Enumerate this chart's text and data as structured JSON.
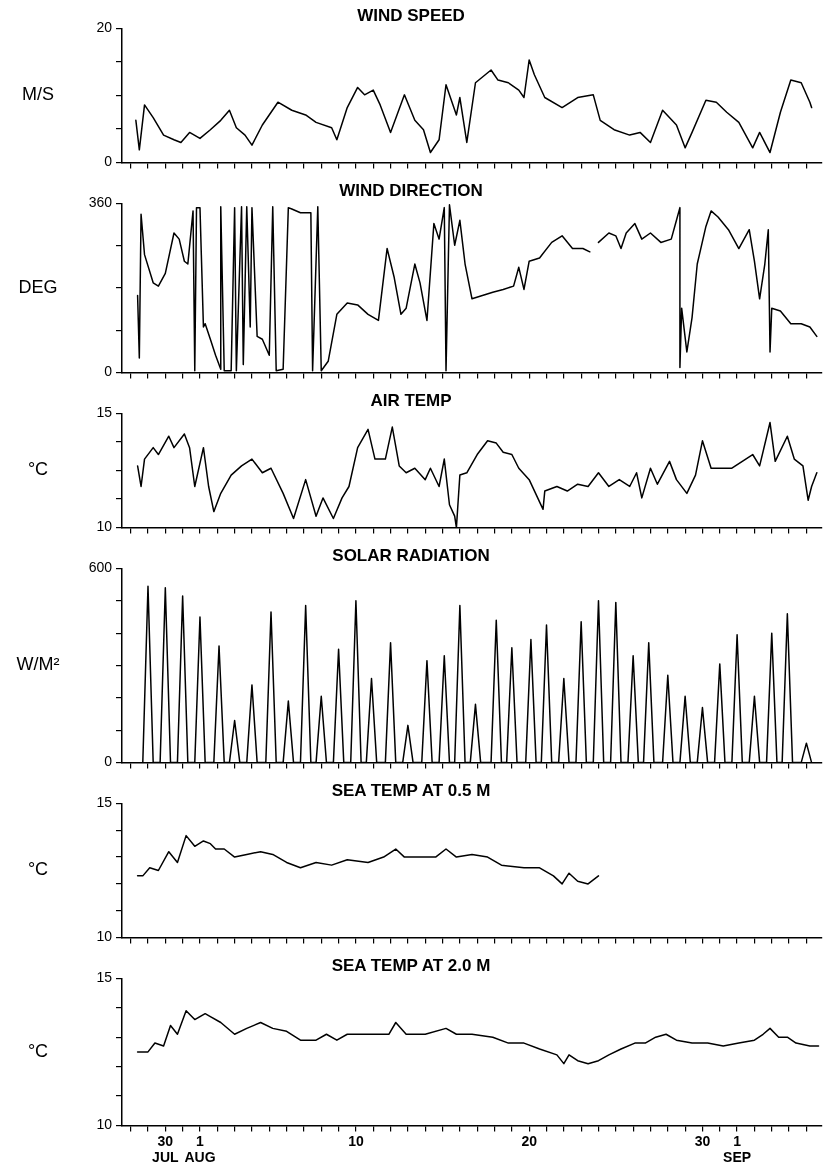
{
  "chart_data": [
    {
      "type": "line",
      "title": "WIND SPEED",
      "ylabel": "M/S",
      "color": "#000000",
      "marker": "none",
      "tick_labels": "y",
      "xlim": [
        -3.5,
        36.9
      ],
      "ylim": [
        0,
        20
      ],
      "yticks": [
        0,
        {
          "value": 5,
          "label": null
        },
        {
          "value": 10,
          "label": null
        },
        {
          "value": 15,
          "label": null
        },
        20
      ],
      "xticks": [
        {
          "value": -3,
          "label": null
        },
        {
          "value": -2,
          "label": null
        },
        {
          "value": -1,
          "label": null
        },
        {
          "value": 0,
          "label": null
        },
        {
          "value": 1,
          "label": null
        },
        {
          "value": 2,
          "label": null
        },
        {
          "value": 3,
          "label": null
        },
        {
          "value": 4,
          "label": null
        },
        {
          "value": 5,
          "label": null
        },
        {
          "value": 6,
          "label": null
        },
        {
          "value": 7,
          "label": null
        },
        {
          "value": 8,
          "label": null
        },
        {
          "value": 9,
          "label": null
        },
        {
          "value": 10,
          "label": null
        },
        {
          "value": 11,
          "label": null
        },
        {
          "value": 12,
          "label": null
        },
        {
          "value": 13,
          "label": null
        },
        {
          "value": 14,
          "label": null
        },
        {
          "value": 15,
          "label": null
        },
        {
          "value": 16,
          "label": null
        },
        {
          "value": 17,
          "label": null
        },
        {
          "value": 18,
          "label": null
        },
        {
          "value": 19,
          "label": null
        },
        {
          "value": 20,
          "label": null
        },
        {
          "value": 21,
          "label": null
        },
        {
          "value": 22,
          "label": null
        },
        {
          "value": 23,
          "label": null
        },
        {
          "value": 24,
          "label": null
        },
        {
          "value": 25,
          "label": null
        },
        {
          "value": 26,
          "label": null
        },
        {
          "value": 27,
          "label": null
        },
        {
          "value": 28,
          "label": null
        },
        {
          "value": 29,
          "label": null
        },
        {
          "value": 30,
          "label": null
        },
        {
          "value": 31,
          "label": null
        },
        {
          "value": 32,
          "label": null
        },
        {
          "value": 33,
          "label": null
        },
        {
          "value": 34,
          "label": null
        },
        {
          "value": 35,
          "label": null
        },
        {
          "value": 36,
          "label": null
        }
      ],
      "x": [
        -2.7,
        -2.5,
        -2.2,
        -1.7,
        -1.1,
        -0.5,
        -0.1,
        0.4,
        1.0,
        1.6,
        2.2,
        2.7,
        3.1,
        3.6,
        4.0,
        4.6,
        5.5,
        6.3,
        7.1,
        7.7,
        8.6,
        8.9,
        9.5,
        10.1,
        10.5,
        11.0,
        11.4,
        12.0,
        12.8,
        13.4,
        13.9,
        14.3,
        14.8,
        15.2,
        15.8,
        16.0,
        16.4,
        16.9,
        17.8,
        18.2,
        18.8,
        19.4,
        19.7,
        20.0,
        20.3,
        20.9,
        21.9,
        22.8,
        23.7,
        24.1,
        24.9,
        25.8,
        26.4,
        27.0,
        27.7,
        28.5,
        29.0,
        29.4,
        30.2,
        30.8,
        31.4,
        32.1,
        32.9,
        33.3,
        33.9,
        34.5,
        35.1,
        35.7,
        36.2,
        36.3
      ],
      "values": [
        6.3,
        1.9,
        8.6,
        6.7,
        4.1,
        3.4,
        3.0,
        4.5,
        3.6,
        4.9,
        6.3,
        7.8,
        5.2,
        4.1,
        2.6,
        5.6,
        9.0,
        7.8,
        7.1,
        6.0,
        5.2,
        3.4,
        8.2,
        11.2,
        10.1,
        10.8,
        8.6,
        4.5,
        10.1,
        6.3,
        4.9,
        1.5,
        3.4,
        11.6,
        7.1,
        9.7,
        3.0,
        11.9,
        13.8,
        12.3,
        11.9,
        10.8,
        9.7,
        15.3,
        13.1,
        9.7,
        8.2,
        9.7,
        10.1,
        6.3,
        4.9,
        4.1,
        4.5,
        3.0,
        7.8,
        5.6,
        2.2,
        4.5,
        9.3,
        9.0,
        7.5,
        6.0,
        2.2,
        4.5,
        1.5,
        7.5,
        12.3,
        11.9,
        9.0,
        8.2
      ]
    },
    {
      "type": "line",
      "title": "WIND DIRECTION",
      "ylabel": "DEG",
      "color": "#000000",
      "marker": "none",
      "tick_labels": "y",
      "xlim": [
        -3.5,
        36.9
      ],
      "ylim": [
        0,
        360
      ],
      "yticks": [
        0,
        {
          "value": 90,
          "label": null
        },
        {
          "value": 180,
          "label": null
        },
        {
          "value": 270,
          "label": null
        },
        360
      ],
      "xticks": [
        {
          "value": -3,
          "label": null
        },
        {
          "value": -2,
          "label": null
        },
        {
          "value": -1,
          "label": null
        },
        {
          "value": 0,
          "label": null
        },
        {
          "value": 1,
          "label": null
        },
        {
          "value": 2,
          "label": null
        },
        {
          "value": 3,
          "label": null
        },
        {
          "value": 4,
          "label": null
        },
        {
          "value": 5,
          "label": null
        },
        {
          "value": 6,
          "label": null
        },
        {
          "value": 7,
          "label": null
        },
        {
          "value": 8,
          "label": null
        },
        {
          "value": 9,
          "label": null
        },
        {
          "value": 10,
          "label": null
        },
        {
          "value": 11,
          "label": null
        },
        {
          "value": 12,
          "label": null
        },
        {
          "value": 13,
          "label": null
        },
        {
          "value": 14,
          "label": null
        },
        {
          "value": 15,
          "label": null
        },
        {
          "value": 16,
          "label": null
        },
        {
          "value": 17,
          "label": null
        },
        {
          "value": 18,
          "label": null
        },
        {
          "value": 19,
          "label": null
        },
        {
          "value": 20,
          "label": null
        },
        {
          "value": 21,
          "label": null
        },
        {
          "value": 22,
          "label": null
        },
        {
          "value": 23,
          "label": null
        },
        {
          "value": 24,
          "label": null
        },
        {
          "value": 25,
          "label": null
        },
        {
          "value": 26,
          "label": null
        },
        {
          "value": 27,
          "label": null
        },
        {
          "value": 28,
          "label": null
        },
        {
          "value": 29,
          "label": null
        },
        {
          "value": 30,
          "label": null
        },
        {
          "value": 31,
          "label": null
        },
        {
          "value": 32,
          "label": null
        },
        {
          "value": 33,
          "label": null
        },
        {
          "value": 34,
          "label": null
        },
        {
          "value": 35,
          "label": null
        },
        {
          "value": 36,
          "label": null
        }
      ],
      "x": [
        -2.6,
        -2.5,
        -2.4,
        -2.2,
        -1.7,
        -1.4,
        -1.0,
        -0.5,
        -0.2,
        0.1,
        0.3,
        0.6,
        0.7,
        0.8,
        1.0,
        1.2,
        1.3,
        1.6,
        1.9,
        2.2,
        2.2,
        2.4,
        2.8,
        3.0,
        3.1,
        3.4,
        3.5,
        3.7,
        3.9,
        4.0,
        4.3,
        4.6,
        5.0,
        5.2,
        5.4,
        5.8,
        6.1,
        6.3,
        6.8,
        7.4,
        7.5,
        7.8,
        8.0,
        8.4,
        8.9,
        9.5,
        10.1,
        10.7,
        11.3,
        11.8,
        12.2,
        12.6,
        12.9,
        13.4,
        13.7,
        14.1,
        14.5,
        14.8,
        15.1,
        15.2,
        15.4,
        15.7,
        16.0,
        16.3,
        16.7,
        17.3,
        17.9,
        18.5,
        19.1,
        19.4,
        19.7,
        20.0,
        20.6,
        21.3,
        21.9,
        22.5,
        23.1,
        23.5,
        23.7,
        24.0,
        24.6,
        25.0,
        25.3,
        25.6,
        26.1,
        26.5,
        27.0,
        27.6,
        28.2,
        28.5,
        28.7,
        28.7,
        28.8,
        29.1,
        29.4,
        29.7,
        30.2,
        30.5,
        30.9,
        31.5,
        32.1,
        32.7,
        33.0,
        33.3,
        33.6,
        33.8,
        33.9,
        34.0,
        34.5,
        35.1,
        35.7,
        36.2,
        36.6
      ],
      "values": [
        164,
        31,
        337,
        251,
        191,
        184,
        211,
        297,
        284,
        237,
        231,
        344,
        4,
        351,
        351,
        97,
        104,
        71,
        37,
        7,
        353,
        4,
        4,
        351,
        4,
        353,
        17,
        353,
        97,
        351,
        77,
        71,
        37,
        353,
        4,
        7,
        351,
        348,
        340,
        340,
        4,
        353,
        4,
        24,
        124,
        148,
        144,
        124,
        111,
        264,
        204,
        124,
        137,
        231,
        191,
        111,
        317,
        284,
        351,
        4,
        357,
        271,
        324,
        231,
        157,
        164,
        171,
        177,
        184,
        224,
        177,
        237,
        244,
        277,
        291,
        264,
        264,
        257,
        null,
        277,
        297,
        291,
        264,
        297,
        317,
        284,
        297,
        277,
        284,
        324,
        351,
        11,
        137,
        44,
        117,
        231,
        311,
        344,
        331,
        304,
        264,
        304,
        237,
        157,
        231,
        304,
        44,
        137,
        131,
        104,
        104,
        97,
        77
      ]
    },
    {
      "type": "line",
      "title": "AIR TEMP",
      "ylabel": "°C",
      "color": "#000000",
      "marker": "none",
      "tick_labels": "y",
      "xlim": [
        -3.5,
        36.9
      ],
      "ylim": [
        10,
        15
      ],
      "yticks": [
        10,
        {
          "value": 11.25,
          "label": null
        },
        {
          "value": 12.5,
          "label": null
        },
        {
          "value": 13.75,
          "label": null
        },
        15
      ],
      "xticks": [
        {
          "value": -3,
          "label": null
        },
        {
          "value": -2,
          "label": null
        },
        {
          "value": -1,
          "label": null
        },
        {
          "value": 0,
          "label": null
        },
        {
          "value": 1,
          "label": null
        },
        {
          "value": 2,
          "label": null
        },
        {
          "value": 3,
          "label": null
        },
        {
          "value": 4,
          "label": null
        },
        {
          "value": 5,
          "label": null
        },
        {
          "value": 6,
          "label": null
        },
        {
          "value": 7,
          "label": null
        },
        {
          "value": 8,
          "label": null
        },
        {
          "value": 9,
          "label": null
        },
        {
          "value": 10,
          "label": null
        },
        {
          "value": 11,
          "label": null
        },
        {
          "value": 12,
          "label": null
        },
        {
          "value": 13,
          "label": null
        },
        {
          "value": 14,
          "label": null
        },
        {
          "value": 15,
          "label": null
        },
        {
          "value": 16,
          "label": null
        },
        {
          "value": 17,
          "label": null
        },
        {
          "value": 18,
          "label": null
        },
        {
          "value": 19,
          "label": null
        },
        {
          "value": 20,
          "label": null
        },
        {
          "value": 21,
          "label": null
        },
        {
          "value": 22,
          "label": null
        },
        {
          "value": 23,
          "label": null
        },
        {
          "value": 24,
          "label": null
        },
        {
          "value": 25,
          "label": null
        },
        {
          "value": 26,
          "label": null
        },
        {
          "value": 27,
          "label": null
        },
        {
          "value": 28,
          "label": null
        },
        {
          "value": 29,
          "label": null
        },
        {
          "value": 30,
          "label": null
        },
        {
          "value": 31,
          "label": null
        },
        {
          "value": 32,
          "label": null
        },
        {
          "value": 33,
          "label": null
        },
        {
          "value": 34,
          "label": null
        },
        {
          "value": 35,
          "label": null
        },
        {
          "value": 36,
          "label": null
        }
      ],
      "x": [
        -2.6,
        -2.4,
        -2.2,
        -1.7,
        -1.4,
        -0.8,
        -0.5,
        0.1,
        0.4,
        0.7,
        1.2,
        1.5,
        1.8,
        2.2,
        2.8,
        3.4,
        4.0,
        4.6,
        5.1,
        5.8,
        6.4,
        7.1,
        7.7,
        8.1,
        8.7,
        9.2,
        9.6,
        10.1,
        10.7,
        11.1,
        11.7,
        12.1,
        12.5,
        12.9,
        13.4,
        14.0,
        14.3,
        14.8,
        15.1,
        15.4,
        15.7,
        15.8,
        16.0,
        16.4,
        17.0,
        17.6,
        18.1,
        18.5,
        19.0,
        19.4,
        20.0,
        20.8,
        20.9,
        21.6,
        22.2,
        22.8,
        23.4,
        24.0,
        24.6,
        25.2,
        25.8,
        26.2,
        26.5,
        27.0,
        27.4,
        28.1,
        28.5,
        29.1,
        29.6,
        30.0,
        30.5,
        31.1,
        31.7,
        32.3,
        32.9,
        33.3,
        33.9,
        34.2,
        34.9,
        35.3,
        35.8,
        36.1,
        36.3,
        36.6
      ],
      "values": [
        12.7,
        11.8,
        13.0,
        13.5,
        13.2,
        14.0,
        13.5,
        14.1,
        13.5,
        11.8,
        13.5,
        11.8,
        10.7,
        11.5,
        12.3,
        12.7,
        13.0,
        12.4,
        12.6,
        11.5,
        10.4,
        12.1,
        10.5,
        11.3,
        10.4,
        11.3,
        11.8,
        13.5,
        14.3,
        13.0,
        13.0,
        14.4,
        12.7,
        12.4,
        12.6,
        12.1,
        12.6,
        11.8,
        13.0,
        11.0,
        10.5,
        10.0,
        12.3,
        12.4,
        13.2,
        13.8,
        13.7,
        13.3,
        13.2,
        12.6,
        12.1,
        10.8,
        11.6,
        11.8,
        11.6,
        11.9,
        11.8,
        12.4,
        11.8,
        12.1,
        11.8,
        12.4,
        11.3,
        12.6,
        11.9,
        12.9,
        12.1,
        11.5,
        12.3,
        13.8,
        12.6,
        12.6,
        12.6,
        12.9,
        13.2,
        12.7,
        14.6,
        12.9,
        14.0,
        13.0,
        12.7,
        11.2,
        11.8,
        12.4
      ]
    },
    {
      "type": "line",
      "title": "SOLAR RADIATION",
      "ylabel": "W/M²",
      "color": "#000000",
      "marker": "none",
      "tick_labels": "y",
      "xlim": [
        -3.5,
        36.9
      ],
      "ylim": [
        0,
        600
      ],
      "yticks": [
        0,
        {
          "value": 100,
          "label": null
        },
        {
          "value": 200,
          "label": null
        },
        {
          "value": 300,
          "label": null
        },
        {
          "value": 400,
          "label": null
        },
        {
          "value": 500,
          "label": null
        },
        600
      ],
      "xticks": [
        {
          "value": -3,
          "label": null
        },
        {
          "value": -2,
          "label": null
        },
        {
          "value": -1,
          "label": null
        },
        {
          "value": 0,
          "label": null
        },
        {
          "value": 1,
          "label": null
        },
        {
          "value": 2,
          "label": null
        },
        {
          "value": 3,
          "label": null
        },
        {
          "value": 4,
          "label": null
        },
        {
          "value": 5,
          "label": null
        },
        {
          "value": 6,
          "label": null
        },
        {
          "value": 7,
          "label": null
        },
        {
          "value": 8,
          "label": null
        },
        {
          "value": 9,
          "label": null
        },
        {
          "value": 10,
          "label": null
        },
        {
          "value": 11,
          "label": null
        },
        {
          "value": 12,
          "label": null
        },
        {
          "value": 13,
          "label": null
        },
        {
          "value": 14,
          "label": null
        },
        {
          "value": 15,
          "label": null
        },
        {
          "value": 16,
          "label": null
        },
        {
          "value": 17,
          "label": null
        },
        {
          "value": 18,
          "label": null
        },
        {
          "value": 19,
          "label": null
        },
        {
          "value": 20,
          "label": null
        },
        {
          "value": 21,
          "label": null
        },
        {
          "value": 22,
          "label": null
        },
        {
          "value": 23,
          "label": null
        },
        {
          "value": 24,
          "label": null
        },
        {
          "value": 25,
          "label": null
        },
        {
          "value": 26,
          "label": null
        },
        {
          "value": 27,
          "label": null
        },
        {
          "value": 28,
          "label": null
        },
        {
          "value": 29,
          "label": null
        },
        {
          "value": 30,
          "label": null
        },
        {
          "value": 31,
          "label": null
        },
        {
          "value": 32,
          "label": null
        },
        {
          "value": 33,
          "label": null
        },
        {
          "value": 34,
          "label": null
        },
        {
          "value": 35,
          "label": null
        },
        {
          "value": 36,
          "label": null
        }
      ],
      "x": [
        -2.3,
        -2.0,
        -1.7,
        -1.3,
        -1.0,
        -0.7,
        -0.3,
        0.0,
        0.3,
        0.7,
        1.0,
        1.3,
        1.8,
        2.1,
        2.4,
        2.7,
        3.0,
        3.3,
        3.7,
        4.0,
        4.3,
        4.8,
        5.1,
        5.4,
        5.8,
        6.1,
        6.4,
        6.8,
        7.1,
        7.4,
        7.7,
        8.0,
        8.3,
        8.7,
        9.0,
        9.3,
        9.7,
        10.0,
        10.3,
        10.6,
        10.9,
        11.2,
        11.7,
        12.0,
        12.3,
        12.7,
        13.0,
        13.3,
        13.8,
        14.1,
        14.4,
        14.8,
        15.1,
        15.4,
        15.7,
        16.0,
        16.3,
        16.6,
        16.9,
        17.2,
        17.8,
        18.1,
        18.4,
        18.7,
        19.0,
        19.3,
        19.8,
        20.1,
        20.4,
        20.7,
        21.0,
        21.3,
        21.7,
        22.0,
        22.3,
        22.7,
        23.0,
        23.3,
        23.7,
        24.0,
        24.3,
        24.7,
        25.0,
        25.3,
        25.7,
        26.0,
        26.3,
        26.6,
        26.9,
        27.2,
        27.7,
        28.0,
        28.3,
        28.7,
        29.0,
        29.3,
        29.7,
        30.0,
        30.3,
        30.7,
        31.0,
        31.3,
        31.7,
        32.0,
        32.3,
        32.7,
        33.0,
        33.3,
        33.7,
        34.0,
        34.3,
        34.6,
        34.9,
        35.2,
        35.7,
        36.0,
        36.3
      ],
      "values": [
        0,
        545,
        0,
        0,
        540,
        0,
        0,
        515,
        0,
        0,
        450,
        0,
        0,
        360,
        0,
        0,
        130,
        0,
        0,
        240,
        0,
        0,
        465,
        0,
        0,
        190,
        0,
        0,
        485,
        0,
        0,
        205,
        0,
        0,
        350,
        0,
        0,
        500,
        0,
        0,
        260,
        0,
        0,
        370,
        0,
        0,
        115,
        0,
        0,
        315,
        0,
        0,
        330,
        0,
        0,
        485,
        0,
        0,
        180,
        0,
        0,
        440,
        0,
        0,
        355,
        0,
        0,
        380,
        0,
        0,
        425,
        0,
        0,
        260,
        0,
        0,
        435,
        0,
        0,
        500,
        0,
        0,
        495,
        0,
        0,
        330,
        0,
        0,
        370,
        0,
        0,
        270,
        0,
        0,
        205,
        0,
        0,
        170,
        0,
        0,
        305,
        0,
        0,
        395,
        0,
        0,
        205,
        0,
        0,
        400,
        0,
        0,
        460,
        0,
        0,
        60,
        0
      ]
    },
    {
      "type": "line",
      "title": "SEA TEMP AT 0.5 M",
      "ylabel": "°C",
      "color": "#000000",
      "marker": "none",
      "tick_labels": "y",
      "xlim": [
        -3.5,
        36.9
      ],
      "ylim": [
        10,
        15
      ],
      "yticks": [
        10,
        {
          "value": 11,
          "label": null
        },
        {
          "value": 12,
          "label": null
        },
        {
          "value": 13,
          "label": null
        },
        {
          "value": 14,
          "label": null
        },
        15
      ],
      "xticks": [
        {
          "value": -3,
          "label": null
        },
        {
          "value": -2,
          "label": null
        },
        {
          "value": -1,
          "label": null
        },
        {
          "value": 0,
          "label": null
        },
        {
          "value": 1,
          "label": null
        },
        {
          "value": 2,
          "label": null
        },
        {
          "value": 3,
          "label": null
        },
        {
          "value": 4,
          "label": null
        },
        {
          "value": 5,
          "label": null
        },
        {
          "value": 6,
          "label": null
        },
        {
          "value": 7,
          "label": null
        },
        {
          "value": 8,
          "label": null
        },
        {
          "value": 9,
          "label": null
        },
        {
          "value": 10,
          "label": null
        },
        {
          "value": 11,
          "label": null
        },
        {
          "value": 12,
          "label": null
        },
        {
          "value": 13,
          "label": null
        },
        {
          "value": 14,
          "label": null
        },
        {
          "value": 15,
          "label": null
        },
        {
          "value": 16,
          "label": null
        },
        {
          "value": 17,
          "label": null
        },
        {
          "value": 18,
          "label": null
        },
        {
          "value": 19,
          "label": null
        },
        {
          "value": 20,
          "label": null
        },
        {
          "value": 21,
          "label": null
        },
        {
          "value": 22,
          "label": null
        },
        {
          "value": 23,
          "label": null
        },
        {
          "value": 24,
          "label": null
        },
        {
          "value": 25,
          "label": null
        },
        {
          "value": 26,
          "label": null
        },
        {
          "value": 27,
          "label": null
        },
        {
          "value": 28,
          "label": null
        },
        {
          "value": 29,
          "label": null
        },
        {
          "value": 30,
          "label": null
        },
        {
          "value": 31,
          "label": null
        },
        {
          "value": 32,
          "label": null
        },
        {
          "value": 33,
          "label": null
        },
        {
          "value": 34,
          "label": null
        },
        {
          "value": 35,
          "label": null
        },
        {
          "value": 36,
          "label": null
        }
      ],
      "x": [
        -2.6,
        -2.3,
        -1.9,
        -1.4,
        -0.8,
        -0.3,
        0.2,
        0.7,
        1.2,
        1.6,
        1.9,
        2.4,
        3.0,
        3.7,
        4.5,
        5.2,
        6.0,
        6.8,
        7.7,
        8.6,
        9.5,
        10.7,
        11.6,
        12.3,
        12.8,
        13.7,
        14.6,
        15.2,
        15.8,
        16.7,
        17.6,
        18.4,
        19.7,
        20.6,
        21.4,
        21.9,
        22.3,
        22.8,
        23.4,
        24.0
      ],
      "values": [
        12.3,
        12.3,
        12.6,
        12.5,
        13.2,
        12.8,
        13.8,
        13.4,
        13.6,
        13.5,
        13.3,
        13.3,
        13.0,
        13.1,
        13.2,
        13.1,
        12.8,
        12.6,
        12.8,
        12.7,
        12.9,
        12.8,
        13.0,
        13.3,
        13.0,
        13.0,
        13.0,
        13.3,
        13.0,
        13.1,
        13.0,
        12.7,
        12.6,
        12.6,
        12.3,
        12.0,
        12.4,
        12.1,
        12.0,
        12.3
      ]
    },
    {
      "type": "line",
      "title": "SEA TEMP AT 2.0 M",
      "ylabel": "°C",
      "color": "#000000",
      "marker": "none",
      "xlim": [
        -3.5,
        36.9
      ],
      "ylim": [
        10,
        15
      ],
      "yticks": [
        10,
        {
          "value": 11,
          "label": null
        },
        {
          "value": 12,
          "label": null
        },
        {
          "value": 13,
          "label": null
        },
        {
          "value": 14,
          "label": null
        },
        15
      ],
      "xticks": [
        {
          "value": -3,
          "label": null
        },
        {
          "value": -2,
          "label": null
        },
        {
          "value": -1,
          "label": "30 JUL"
        },
        {
          "value": 0,
          "label": null
        },
        {
          "value": 1,
          "label": "1 AUG"
        },
        {
          "value": 2,
          "label": null
        },
        {
          "value": 3,
          "label": null
        },
        {
          "value": 4,
          "label": null
        },
        {
          "value": 5,
          "label": null
        },
        {
          "value": 6,
          "label": null
        },
        {
          "value": 7,
          "label": null
        },
        {
          "value": 8,
          "label": null
        },
        {
          "value": 9,
          "label": null
        },
        10,
        {
          "value": 11,
          "label": null
        },
        {
          "value": 12,
          "label": null
        },
        {
          "value": 13,
          "label": null
        },
        {
          "value": 14,
          "label": null
        },
        {
          "value": 15,
          "label": null
        },
        {
          "value": 16,
          "label": null
        },
        {
          "value": 17,
          "label": null
        },
        {
          "value": 18,
          "label": null
        },
        {
          "value": 19,
          "label": null
        },
        20,
        {
          "value": 21,
          "label": null
        },
        {
          "value": 22,
          "label": null
        },
        {
          "value": 23,
          "label": null
        },
        {
          "value": 24,
          "label": null
        },
        {
          "value": 25,
          "label": null
        },
        {
          "value": 26,
          "label": null
        },
        {
          "value": 27,
          "label": null
        },
        {
          "value": 28,
          "label": null
        },
        {
          "value": 29,
          "label": null
        },
        30,
        {
          "value": 31,
          "label": null
        },
        {
          "value": 32,
          "label": "1 SEP"
        },
        {
          "value": 33,
          "label": null
        },
        {
          "value": 34,
          "label": null
        },
        {
          "value": 35,
          "label": null
        },
        {
          "value": 36,
          "label": null
        }
      ],
      "x": [
        -2.6,
        -2.0,
        -1.6,
        -1.1,
        -0.7,
        -0.3,
        0.2,
        0.7,
        1.3,
        1.6,
        2.2,
        3.0,
        3.7,
        4.5,
        5.2,
        6.0,
        6.8,
        7.7,
        8.3,
        8.9,
        9.5,
        10.7,
        11.9,
        12.3,
        12.9,
        14.0,
        15.2,
        15.8,
        16.7,
        17.9,
        18.8,
        19.7,
        20.6,
        21.6,
        22.0,
        22.3,
        22.8,
        23.4,
        24.0,
        24.6,
        25.3,
        26.1,
        26.7,
        27.3,
        27.9,
        28.5,
        29.4,
        30.3,
        31.2,
        32.1,
        33.0,
        33.5,
        33.9,
        34.4,
        34.9,
        35.4,
        36.2,
        36.7
      ],
      "values": [
        12.5,
        12.5,
        12.8,
        12.7,
        13.4,
        13.1,
        13.9,
        13.6,
        13.8,
        13.7,
        13.5,
        13.1,
        13.3,
        13.5,
        13.3,
        13.2,
        12.9,
        12.9,
        13.1,
        12.9,
        13.1,
        13.1,
        13.1,
        13.5,
        13.1,
        13.1,
        13.3,
        13.1,
        13.1,
        13.0,
        12.8,
        12.8,
        12.6,
        12.4,
        12.1,
        12.4,
        12.2,
        12.1,
        12.2,
        12.4,
        12.6,
        12.8,
        12.8,
        13.0,
        13.1,
        12.9,
        12.8,
        12.8,
        12.7,
        12.8,
        12.9,
        13.1,
        13.3,
        13.0,
        13.0,
        12.8,
        12.7,
        12.7
      ]
    }
  ]
}
